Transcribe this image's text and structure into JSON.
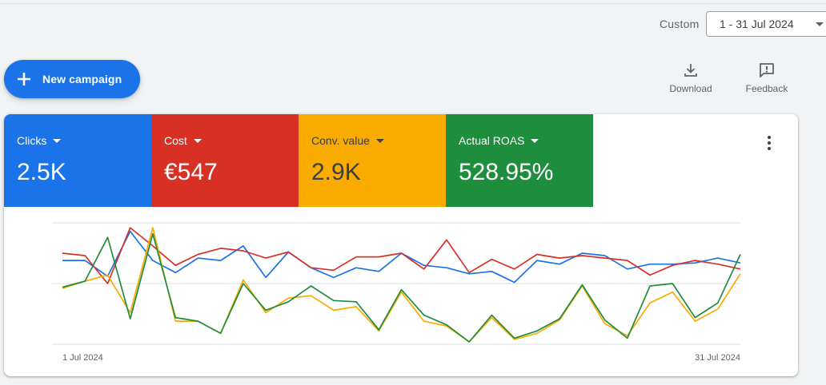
{
  "header": {
    "range_label": "Custom",
    "date_range": "1 - 31 Jul 2024"
  },
  "actions": {
    "new_campaign": "New campaign",
    "download": "Download",
    "feedback": "Feedback"
  },
  "scorecards": [
    {
      "name": "Clicks",
      "value": "2.5K",
      "color": "#1a73e8"
    },
    {
      "name": "Cost",
      "value": "€547",
      "color": "#d93025"
    },
    {
      "name": "Conv. value",
      "value": "2.9K",
      "color": "#f9ab00"
    },
    {
      "name": "Actual ROAS",
      "value": "528.95%",
      "color": "#1e8e3e"
    }
  ],
  "chart_data": {
    "type": "line",
    "x_start_label": "1 Jul 2024",
    "x_end_label": "31 Jul 2024",
    "ylim": [
      0,
      100
    ],
    "grid": true,
    "series": [
      {
        "metric": "Clicks",
        "color": "#1a73e8",
        "values": [
          69,
          69,
          56,
          93,
          69,
          59,
          71,
          69,
          81,
          55,
          76,
          63,
          55,
          63,
          60,
          75,
          65,
          63,
          58,
          60,
          51,
          69,
          66,
          75,
          73,
          62,
          66,
          66,
          67,
          71,
          67
        ]
      },
      {
        "metric": "Cost",
        "color": "#d93025",
        "values": [
          75,
          73,
          50,
          96,
          81,
          65,
          74,
          79,
          77,
          71,
          76,
          63,
          61,
          72,
          72,
          75,
          62,
          86,
          59,
          70,
          62,
          74,
          71,
          73,
          71,
          69,
          57,
          65,
          69,
          66,
          62
        ]
      },
      {
        "metric": "Conv. value",
        "color": "#f9ab00",
        "values": [
          46,
          52,
          57,
          26,
          96,
          19,
          19,
          9,
          53,
          26,
          38,
          40,
          28,
          31,
          11,
          43,
          19,
          15,
          2,
          22,
          4,
          9,
          20,
          48,
          17,
          7,
          34,
          43,
          19,
          29,
          58
        ]
      },
      {
        "metric": "Actual ROAS",
        "color": "#1e8e3e",
        "values": [
          47,
          52,
          88,
          21,
          91,
          22,
          19,
          9,
          50,
          28,
          35,
          48,
          36,
          35,
          12,
          45,
          24,
          16,
          2,
          24,
          5,
          11,
          21,
          49,
          20,
          5,
          48,
          50,
          22,
          34,
          74
        ]
      }
    ]
  }
}
